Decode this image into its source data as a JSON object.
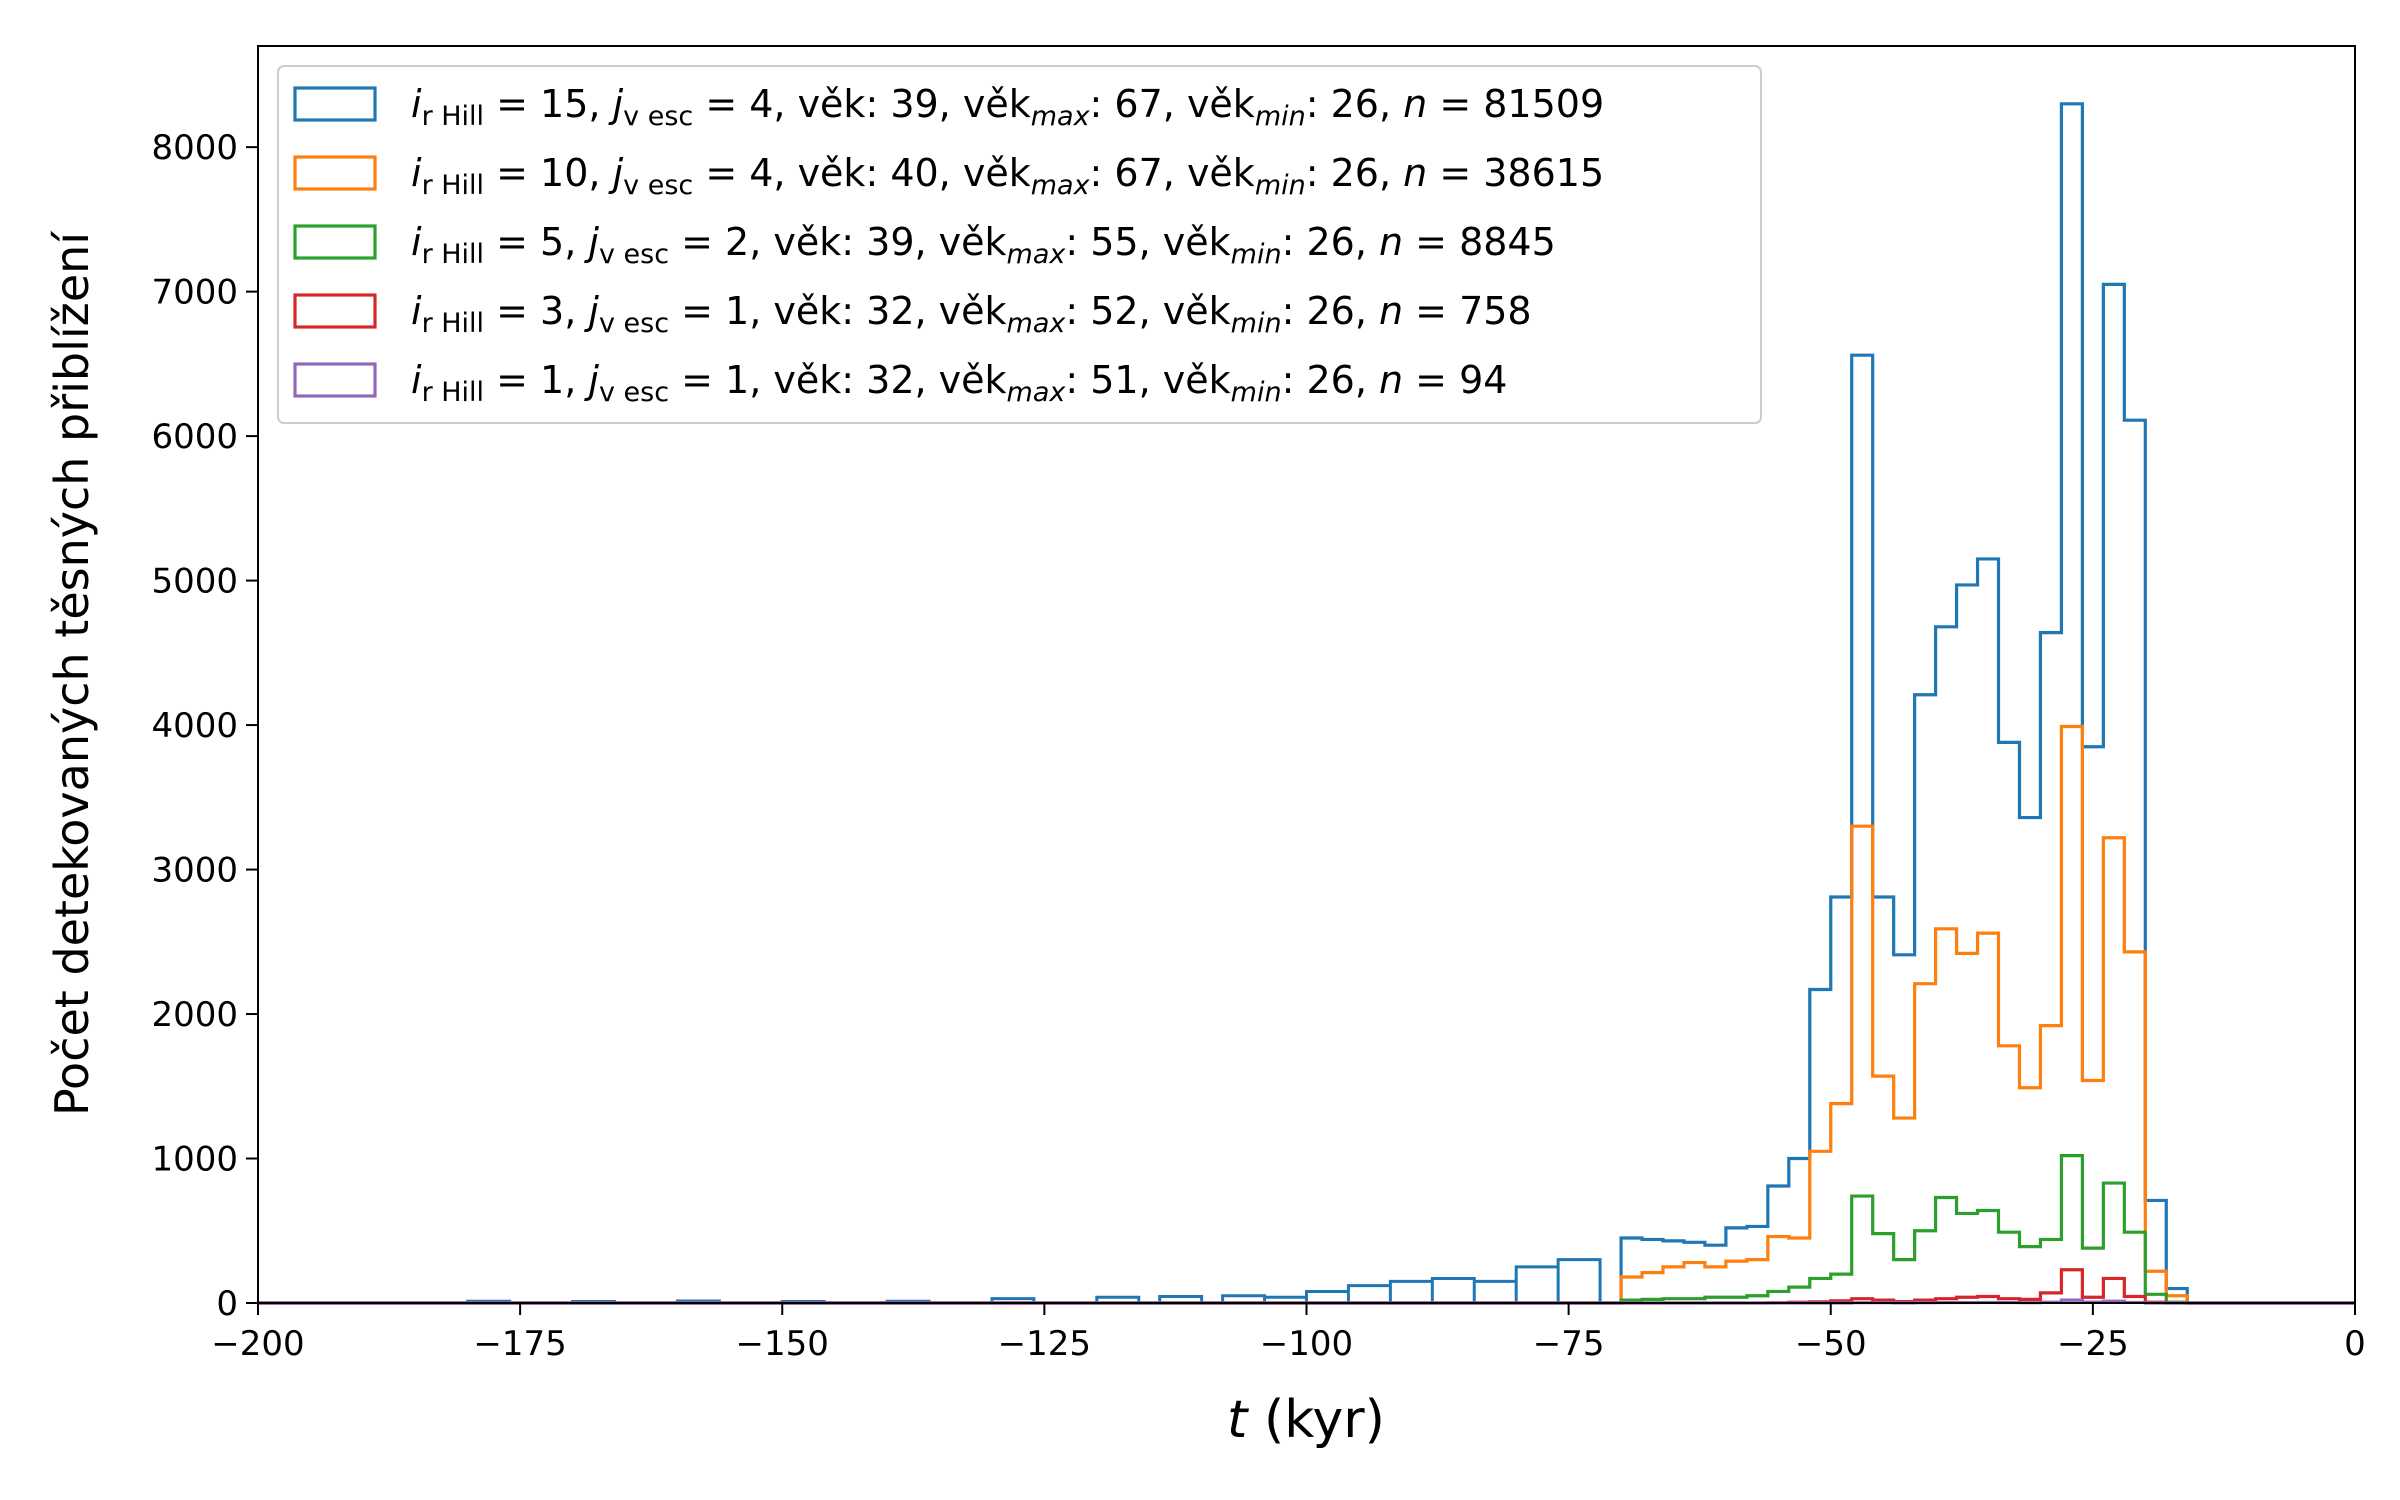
{
  "chart_data": {
    "type": "histogram-step",
    "xlabel_var": "t",
    "xlabel_unit": " (kyr)",
    "ylabel": "Počet detekovaných těsných přiblížení",
    "xlim": [
      -200,
      0
    ],
    "ylim": [
      0,
      8700
    ],
    "xticks": [
      -200,
      -175,
      -150,
      -125,
      -100,
      -75,
      -50,
      -25,
      0
    ],
    "xtick_labels": [
      "−200",
      "−175",
      "−150",
      "−125",
      "−100",
      "−75",
      "−50",
      "−25",
      "0"
    ],
    "yticks": [
      0,
      1000,
      2000,
      3000,
      4000,
      5000,
      6000,
      7000,
      8000
    ],
    "ytick_labels": [
      "0",
      "1000",
      "2000",
      "3000",
      "4000",
      "5000",
      "6000",
      "7000",
      "8000"
    ],
    "grid": false,
    "legend_position": "top-left",
    "bin_width_kyr": 2,
    "bins_start": -70,
    "series": [
      {
        "name": "i_rHill = 15, j_vesc = 4, věk: 39, věk_max: 67, věk_min: 26, n = 81509",
        "color": "#1f77b4",
        "values": [
          450,
          440,
          430,
          420,
          400,
          520,
          530,
          810,
          1000,
          2170,
          2810,
          6560,
          2810,
          2410,
          4210,
          4680,
          4970,
          5150,
          3880,
          3360,
          4640,
          8300,
          3850,
          7050,
          6110,
          710,
          100
        ]
      },
      {
        "name": "i_rHill = 10, j_vesc = 4, věk: 40, věk_max: 67, věk_min: 26, n = 38615",
        "color": "#ff7f0e",
        "values": [
          180,
          210,
          250,
          280,
          250,
          290,
          300,
          460,
          450,
          1050,
          1380,
          3300,
          1570,
          1280,
          2210,
          2590,
          2420,
          2560,
          1780,
          1490,
          1920,
          3990,
          1540,
          3220,
          2430,
          220,
          50
        ]
      },
      {
        "name": "i_rHill = 5, j_vesc = 2, věk: 39, věk_max: 55, věk_min: 26, n = 8845",
        "color": "#2ca02c",
        "values": [
          20,
          25,
          30,
          30,
          40,
          40,
          50,
          80,
          110,
          170,
          200,
          740,
          480,
          300,
          500,
          730,
          620,
          640,
          490,
          390,
          440,
          1020,
          380,
          830,
          490,
          60,
          5
        ]
      },
      {
        "name": "i_rHill = 3, j_vesc = 1, věk: 32, věk_max: 52, věk_min: 26, n = 758",
        "color": "#d62728",
        "values": [
          0,
          0,
          0,
          0,
          0,
          0,
          0,
          2,
          5,
          8,
          15,
          30,
          20,
          10,
          20,
          30,
          40,
          45,
          30,
          25,
          70,
          230,
          40,
          170,
          45,
          5,
          0
        ]
      },
      {
        "name": "i_rHill = 1, j_vesc = 1, věk: 32, věk_max: 51, věk_min: 26, n = 94",
        "color": "#9467bd",
        "values": [
          0,
          0,
          0,
          0,
          0,
          0,
          0,
          0,
          0,
          0,
          0,
          2,
          2,
          1,
          2,
          3,
          3,
          4,
          3,
          2,
          5,
          20,
          6,
          12,
          4,
          0,
          0
        ]
      }
    ],
    "low_tail_blue": [
      [
        -180,
        12
      ],
      [
        -170,
        10
      ],
      [
        -160,
        14
      ],
      [
        -150,
        10
      ],
      [
        -140,
        12
      ],
      [
        -130,
        30
      ],
      [
        -120,
        40
      ],
      [
        -114,
        45
      ],
      [
        -108,
        50
      ],
      [
        -104,
        40
      ],
      [
        -100,
        80
      ],
      [
        -96,
        120
      ],
      [
        -92,
        150
      ],
      [
        -88,
        170
      ],
      [
        -84,
        150
      ],
      [
        -80,
        250
      ],
      [
        -76,
        300
      ]
    ]
  },
  "legend": {
    "rows": [
      {
        "i": "i",
        "i_sub": "r Hill",
        "i_val": " = 15, ",
        "j": "j",
        "j_sub": "v esc",
        "j_val": " = 4, věk:  39, věk",
        "max_sub": "max",
        "max_val": ":  67, věk",
        "min_sub": "min",
        "min_val": ": 26, ",
        "n": "n",
        "n_val": " = 81509"
      },
      {
        "i": "i",
        "i_sub": "r Hill",
        "i_val": " = 10, ",
        "j": "j",
        "j_sub": "v esc",
        "j_val": " = 4, věk:  40, věk",
        "max_sub": "max",
        "max_val": ":  67, věk",
        "min_sub": "min",
        "min_val": ": 26, ",
        "n": "n",
        "n_val": " = 38615"
      },
      {
        "i": "i",
        "i_sub": "r Hill",
        "i_val": " =  5, ",
        "j": "j",
        "j_sub": "v esc",
        "j_val": " = 2, věk:  39, věk",
        "max_sub": "max",
        "max_val": ":  55, věk",
        "min_sub": "min",
        "min_val": ": 26, ",
        "n": "n",
        "n_val": " = 8845"
      },
      {
        "i": "i",
        "i_sub": "r Hill",
        "i_val": " =  3, ",
        "j": "j",
        "j_sub": "v esc",
        "j_val": " = 1, věk:  32, věk",
        "max_sub": "max",
        "max_val": ":  52, věk",
        "min_sub": "min",
        "min_val": ": 26, ",
        "n": "n",
        "n_val": " = 758"
      },
      {
        "i": "i",
        "i_sub": "r Hill",
        "i_val": " =  1, ",
        "j": "j",
        "j_sub": "v esc",
        "j_val": " = 1, věk:  32, věk",
        "max_sub": "max",
        "max_val": ":  51, věk",
        "min_sub": "min",
        "min_val": ": 26, ",
        "n": "n",
        "n_val": " = 94"
      }
    ]
  }
}
